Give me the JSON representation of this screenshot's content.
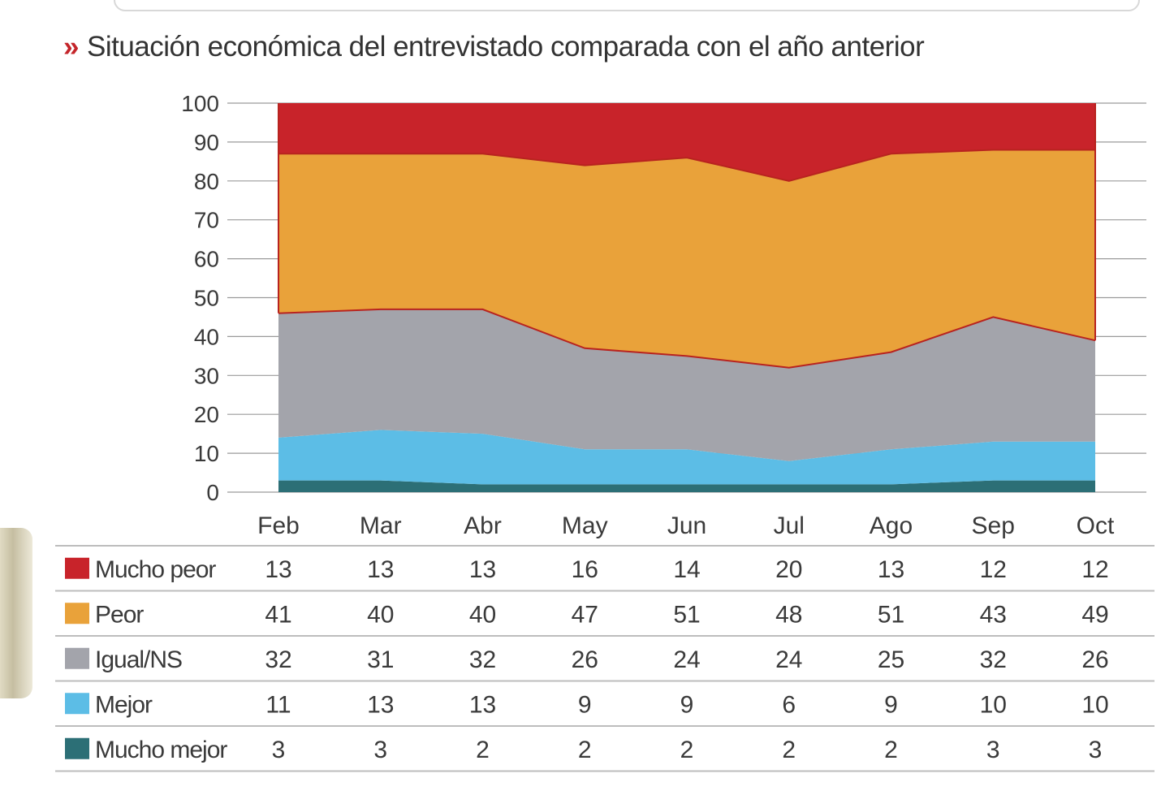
{
  "header": {
    "title_marker": "»",
    "title": "Situación económica del entrevistado comparada con el año anterior"
  },
  "colors": {
    "mucho_peor": "#c8232a",
    "peor": "#e9a23a",
    "igual_ns": "#a3a4ab",
    "mejor": "#5cbde6",
    "mucho_mejor": "#2c6f76"
  },
  "chart_data": {
    "type": "area",
    "stacked": true,
    "percent": true,
    "title": "Situación económica del entrevistado comparada con el año anterior",
    "xlabel": "",
    "ylabel": "",
    "ylim": [
      0,
      100
    ],
    "yticks": [
      "0",
      "10",
      "20",
      "30",
      "40",
      "50",
      "60",
      "70",
      "80",
      "90",
      "100"
    ],
    "categories": [
      "Feb",
      "Mar",
      "Abr",
      "May",
      "Jun",
      "Jul",
      "Ago",
      "Sep",
      "Oct"
    ],
    "series": [
      {
        "key": "mucho_mejor",
        "name": "Mucho mejor",
        "values": [
          3,
          3,
          2,
          2,
          2,
          2,
          2,
          3,
          3
        ]
      },
      {
        "key": "mejor",
        "name": "Mejor",
        "values": [
          11,
          13,
          13,
          9,
          9,
          6,
          9,
          10,
          10
        ]
      },
      {
        "key": "igual_ns",
        "name": "Igual/NS",
        "values": [
          32,
          31,
          32,
          26,
          24,
          24,
          25,
          32,
          26
        ]
      },
      {
        "key": "peor",
        "name": "Peor",
        "values": [
          41,
          40,
          40,
          47,
          51,
          48,
          51,
          43,
          49
        ]
      },
      {
        "key": "mucho_peor",
        "name": "Mucho peor",
        "values": [
          13,
          13,
          13,
          16,
          14,
          20,
          13,
          12,
          12
        ]
      }
    ],
    "table_rows": [
      "mucho_peor",
      "peor",
      "igual_ns",
      "mejor",
      "mucho_mejor"
    ],
    "legend": "table-below"
  }
}
